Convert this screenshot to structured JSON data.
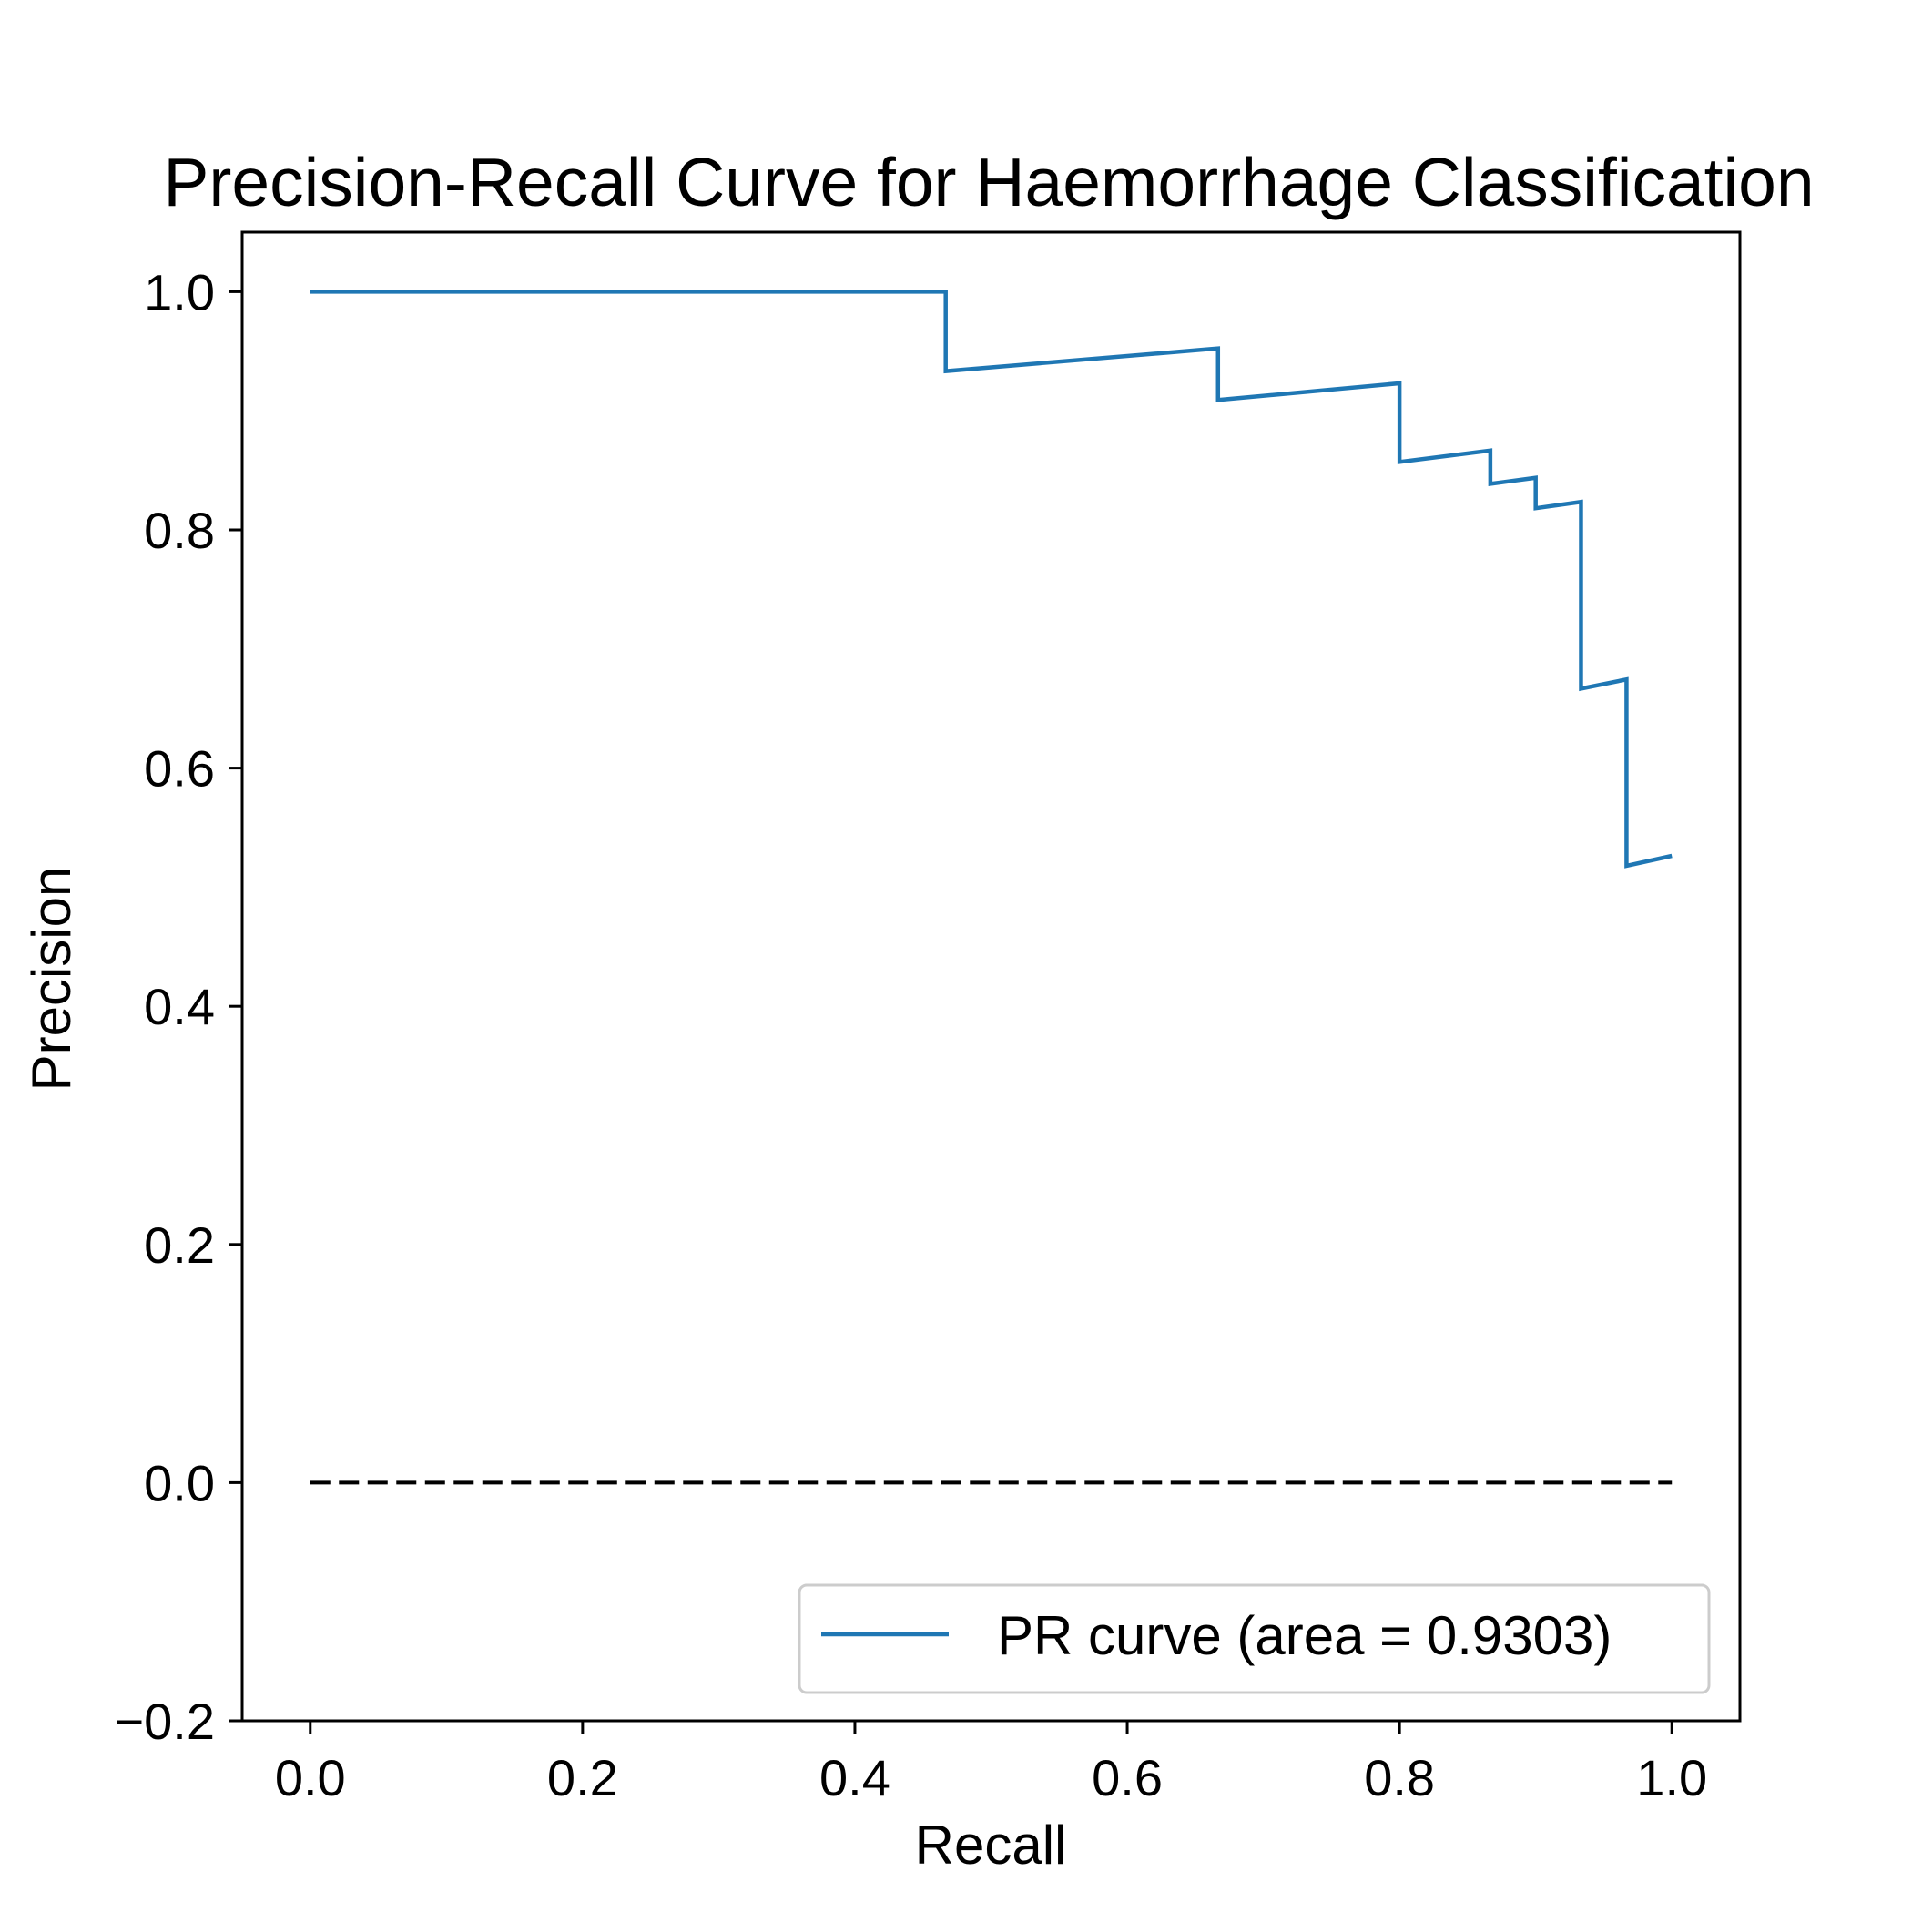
{
  "chart_data": {
    "type": "line",
    "title": "Precision-Recall Curve for Haemorrhage Classification",
    "xlabel": "Recall",
    "ylabel": "Precision",
    "xlim": [
      -0.05,
      1.05
    ],
    "ylim": [
      -0.2,
      1.05
    ],
    "xticks": [
      0.0,
      0.2,
      0.4,
      0.6,
      0.8,
      1.0
    ],
    "yticks": [
      -0.2,
      0.0,
      0.2,
      0.4,
      0.6,
      0.8,
      1.0
    ],
    "grid": false,
    "legend_position": "lower right",
    "series": [
      {
        "name": "PR curve (area = 0.9303)",
        "style": "solid",
        "color": "#1f77b4",
        "x": [
          0.0,
          0.4667,
          0.4667,
          0.6667,
          0.6667,
          0.8,
          0.8,
          0.8667,
          0.8667,
          0.9,
          0.9,
          0.9333,
          0.9333,
          0.9667,
          0.9667,
          1.0
        ],
        "y": [
          1.0,
          1.0,
          0.9333,
          0.9524,
          0.9091,
          0.9231,
          0.8571,
          0.8667,
          0.8387,
          0.8438,
          0.8182,
          0.8235,
          0.6667,
          0.6744,
          0.5179,
          0.5263
        ]
      },
      {
        "style": "dashed",
        "color": "#000000",
        "x": [
          0.0,
          1.0
        ],
        "y": [
          0.0,
          0.0
        ]
      }
    ]
  }
}
